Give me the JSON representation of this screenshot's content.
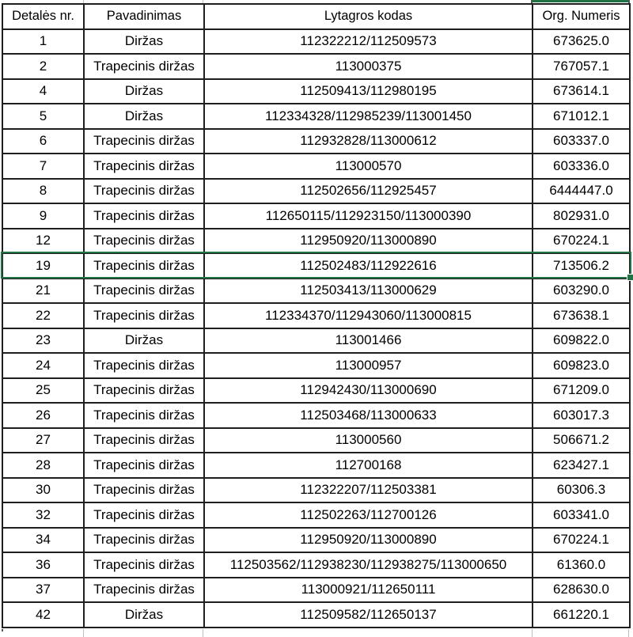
{
  "table": {
    "columns": [
      {
        "label": "Detalės nr."
      },
      {
        "label": "Pavadinimas"
      },
      {
        "label": "Lytagros kodas"
      },
      {
        "label": "Org. Numeris"
      }
    ],
    "rows": [
      {
        "nr": "1",
        "pavadinimas": "Diržas",
        "kodas": "112322212/112509573",
        "org": "673625.0"
      },
      {
        "nr": "2",
        "pavadinimas": "Trapecinis diržas",
        "kodas": "113000375",
        "org": "767057.1"
      },
      {
        "nr": "4",
        "pavadinimas": "Diržas",
        "kodas": "112509413/112980195",
        "org": "673614.1"
      },
      {
        "nr": "5",
        "pavadinimas": "Diržas",
        "kodas": "112334328/112985239/113001450",
        "org": "671012.1"
      },
      {
        "nr": "6",
        "pavadinimas": "Trapecinis diržas",
        "kodas": "112932828/113000612",
        "org": "603337.0"
      },
      {
        "nr": "7",
        "pavadinimas": "Trapecinis diržas",
        "kodas": "113000570",
        "org": "603336.0"
      },
      {
        "nr": "8",
        "pavadinimas": "Trapecinis diržas",
        "kodas": "112502656/112925457",
        "org": "6444447.0"
      },
      {
        "nr": "9",
        "pavadinimas": "Trapecinis diržas",
        "kodas": "112650115/112923150/113000390",
        "org": "802931.0"
      },
      {
        "nr": "12",
        "pavadinimas": "Trapecinis diržas",
        "kodas": "112950920/113000890",
        "org": "670224.1"
      },
      {
        "nr": "19",
        "pavadinimas": "Trapecinis diržas",
        "kodas": "112502483/112922616",
        "org": "713506.2"
      },
      {
        "nr": "21",
        "pavadinimas": "Trapecinis diržas",
        "kodas": "112503413/113000629",
        "org": "603290.0"
      },
      {
        "nr": "22",
        "pavadinimas": "Trapecinis diržas",
        "kodas": "112334370/112943060/113000815",
        "org": "673638.1"
      },
      {
        "nr": "23",
        "pavadinimas": "Diržas",
        "kodas": "113001466",
        "org": "609822.0"
      },
      {
        "nr": "24",
        "pavadinimas": "Trapecinis diržas",
        "kodas": "113000957",
        "org": "609823.0"
      },
      {
        "nr": "25",
        "pavadinimas": "Trapecinis diržas",
        "kodas": "112942430/113000690",
        "org": "671209.0"
      },
      {
        "nr": "26",
        "pavadinimas": "Trapecinis diržas",
        "kodas": "112503468/113000633",
        "org": "603017.3"
      },
      {
        "nr": "27",
        "pavadinimas": "Trapecinis diržas",
        "kodas": "113000560",
        "org": "506671.2"
      },
      {
        "nr": "28",
        "pavadinimas": "Trapecinis diržas",
        "kodas": "112700168",
        "org": "623427.1"
      },
      {
        "nr": "30",
        "pavadinimas": "Trapecinis diržas",
        "kodas": "112322207/112503381",
        "org": "60306.3"
      },
      {
        "nr": "32",
        "pavadinimas": "Trapecinis diržas",
        "kodas": "112502263/112700126",
        "org": "603341.0"
      },
      {
        "nr": "34",
        "pavadinimas": "Trapecinis diržas",
        "kodas": "112950920/113000890",
        "org": "670224.1"
      },
      {
        "nr": "36",
        "pavadinimas": "Trapecinis diržas",
        "kodas": "112503562/112938230/112938275/113000650",
        "org": "61360.0"
      },
      {
        "nr": "37",
        "pavadinimas": "Trapecinis diržas",
        "kodas": "113000921/112650111",
        "org": "628630.0"
      },
      {
        "nr": "42",
        "pavadinimas": "Diržas",
        "kodas": "112509582/112650137",
        "org": "661220.1"
      }
    ]
  },
  "selection": {
    "selected_row_nr": "19",
    "active_cell_value": "713506.2",
    "selection_color": "#217346"
  },
  "colors": {
    "cell_border": "#1f1f1f",
    "gridline": "#bfbfbf",
    "selection_green": "#217346",
    "background": "#ffffff",
    "text": "#000000"
  }
}
